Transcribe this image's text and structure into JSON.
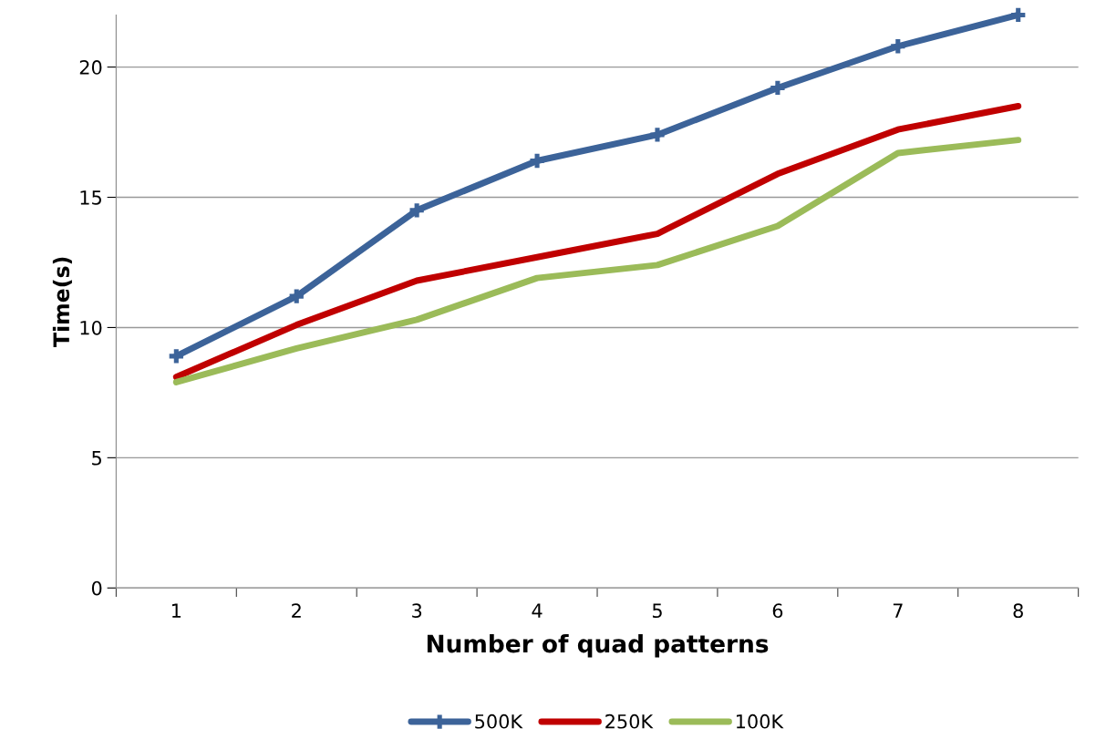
{
  "chart_data": {
    "type": "line",
    "xlabel": "Number of quad patterns",
    "ylabel": "Time(s)",
    "categories": [
      "1",
      "2",
      "3",
      "4",
      "5",
      "6",
      "7",
      "8"
    ],
    "series": [
      {
        "name": "500K",
        "color": "#3c6399",
        "marker": "cross",
        "values": [
          8.9,
          11.2,
          14.5,
          16.4,
          17.4,
          19.2,
          20.8,
          22.0
        ]
      },
      {
        "name": "250K",
        "color": "#c00000",
        "marker": "none",
        "values": [
          8.1,
          10.1,
          11.8,
          12.7,
          13.6,
          15.9,
          17.6,
          18.5
        ]
      },
      {
        "name": "100K",
        "color": "#9bbb59",
        "marker": "none",
        "values": [
          7.9,
          9.2,
          10.3,
          11.9,
          12.4,
          13.9,
          16.7,
          17.2
        ]
      }
    ],
    "ylim": [
      0,
      22
    ],
    "yticks": [
      0,
      5,
      10,
      15,
      20
    ],
    "grid": "y",
    "legend": "bottom",
    "line_style": "solid"
  }
}
